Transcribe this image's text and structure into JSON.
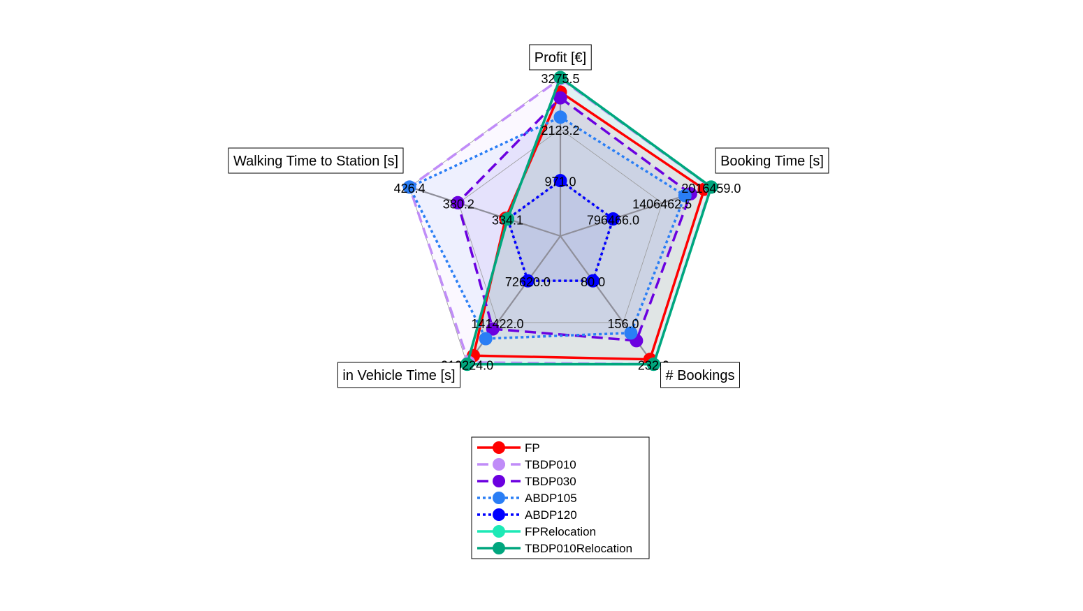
{
  "chart_data": {
    "type": "radar",
    "axes": [
      {
        "name": "Profit [€]",
        "min": 971.0,
        "max": 3275.5,
        "tick_labels": [
          "971.0",
          "2123.2",
          "3275.5"
        ]
      },
      {
        "name": "Booking Time [s]",
        "min": 796466.0,
        "max": 2016459.0,
        "tick_labels": [
          "796466.0",
          "1406462.5",
          "2016459.0"
        ]
      },
      {
        "name": "# Bookings",
        "min": 80.0,
        "max": 232.0,
        "tick_labels": [
          "80.0",
          "156.0",
          "232.0"
        ]
      },
      {
        "name": "in Vehicle Time [s]",
        "min": 72620.0,
        "max": 210224.0,
        "tick_labels": [
          "72620.0",
          "141422.0",
          "210224.0"
        ]
      },
      {
        "name": "Walking Time to Station [s]",
        "min": 334.1,
        "max": 426.4,
        "tick_labels": [
          "334.1",
          "380.2",
          "426.4"
        ]
      }
    ],
    "series": [
      {
        "name": "FP",
        "color": "#ff0000",
        "line": "solid",
        "values": [
          2950,
          1930000,
          223,
          196000,
          336
        ]
      },
      {
        "name": "TBDP010",
        "color": "#c08cf8",
        "line": "dashed",
        "values": [
          3250,
          2010000,
          232,
          207000,
          426.4
        ]
      },
      {
        "name": "TBDP030",
        "color": "#6b00e0",
        "line": "dashed",
        "values": [
          2820,
          1760000,
          189,
          152000,
          381
        ]
      },
      {
        "name": "ABDP105",
        "color": "#2a7ef5",
        "line": "dotted",
        "values": [
          2390,
          1690000,
          175,
          168000,
          426.4
        ]
      },
      {
        "name": "ABDP120",
        "color": "#0000ff",
        "line": "dotted",
        "values": [
          971.0,
          796466.0,
          80.0,
          72620.0,
          334.1
        ]
      },
      {
        "name": "FPRelocation",
        "color": "#1de9b6",
        "line": "solid",
        "values": [
          3275.5,
          2016459.0,
          232.0,
          210224.0,
          334.1
        ]
      },
      {
        "name": "TBDP010Relocation",
        "color": "#00a67e",
        "line": "solid",
        "values": [
          3275.5,
          2016459.0,
          232.0,
          210224.0,
          334.1
        ]
      }
    ],
    "legend_position": "bottom"
  }
}
